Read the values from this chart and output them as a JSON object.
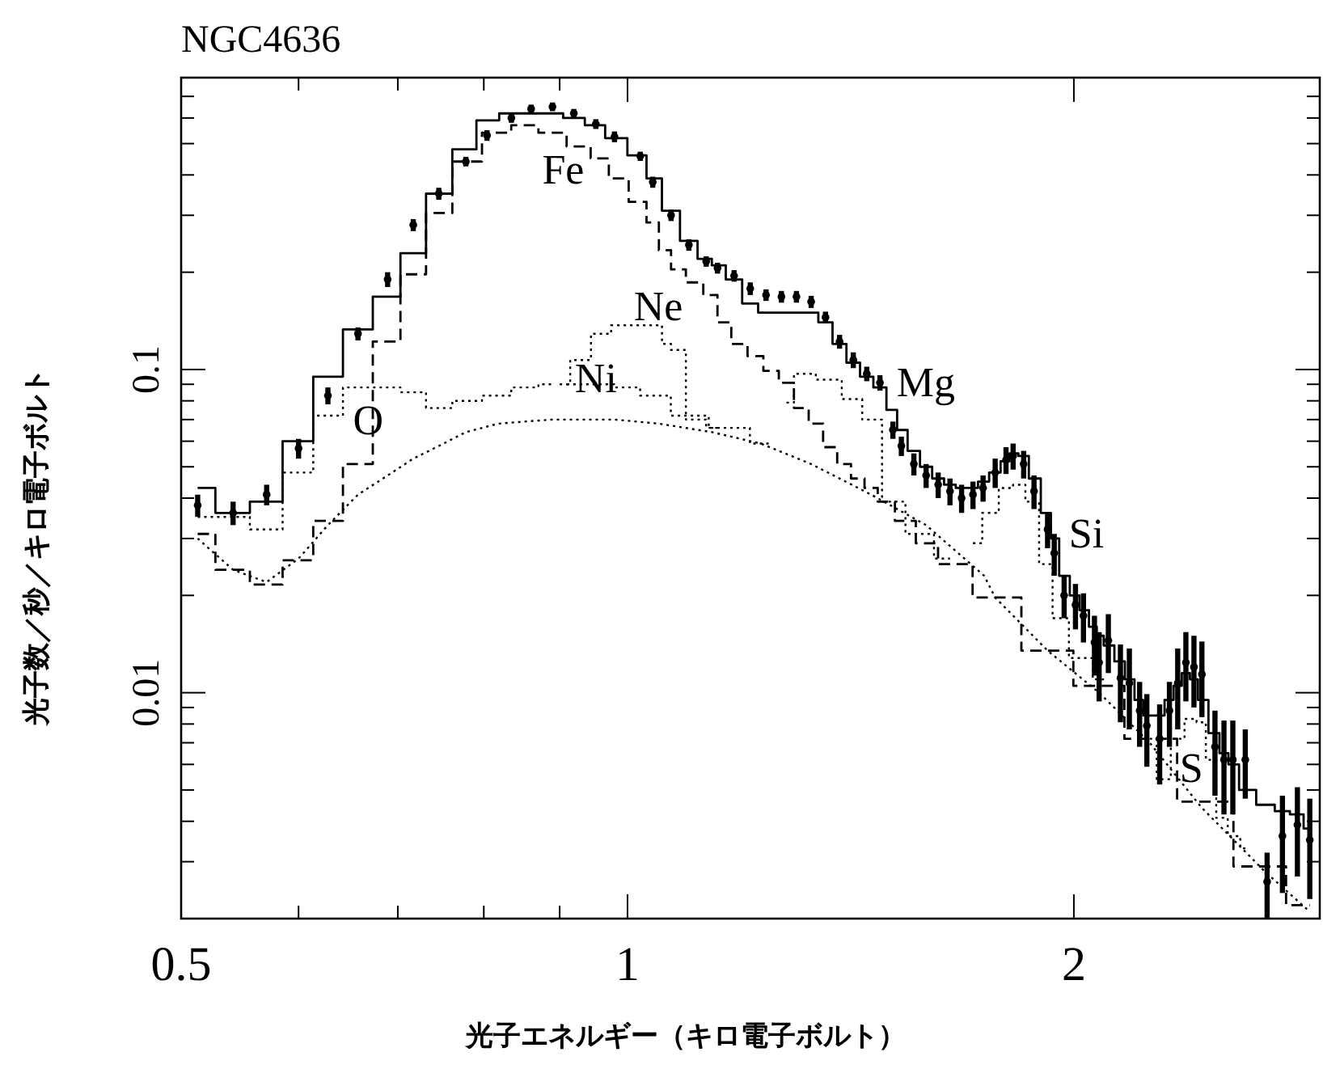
{
  "chart_data": {
    "type": "step",
    "title": "NGC4636",
    "xlabel": "光子エネルギー（キロ電子ボルト）",
    "ylabel": "光子数／秒／キロ電子ボルト",
    "log": "xy",
    "xlim": [
      0.5,
      2.93
    ],
    "ylim": [
      0.002,
      0.8
    ],
    "xticks": [
      0.5,
      {
        "value": 0.6,
        "label": null
      },
      {
        "value": 0.7,
        "label": null
      },
      {
        "value": 0.8,
        "label": null
      },
      {
        "value": 0.9,
        "label": null
      },
      1,
      2
    ],
    "yticks": [
      {
        "value": 0.002,
        "label": null
      },
      {
        "value": 0.003,
        "label": null
      },
      {
        "value": 0.004,
        "label": null
      },
      {
        "value": 0.005,
        "label": null
      },
      {
        "value": 0.006,
        "label": null
      },
      {
        "value": 0.007,
        "label": null
      },
      {
        "value": 0.008,
        "label": null
      },
      {
        "value": 0.009,
        "label": null
      },
      0.01,
      {
        "value": 0.02,
        "label": null
      },
      {
        "value": 0.03,
        "label": null
      },
      {
        "value": 0.04,
        "label": null
      },
      {
        "value": 0.05,
        "label": null
      },
      {
        "value": 0.06,
        "label": null
      },
      {
        "value": 0.07,
        "label": null
      },
      {
        "value": 0.08,
        "label": null
      },
      {
        "value": 0.09,
        "label": null
      },
      0.1,
      {
        "value": 0.2,
        "label": null
      },
      {
        "value": 0.3,
        "label": null
      },
      {
        "value": 0.4,
        "label": null
      },
      {
        "value": 0.5,
        "label": null
      },
      {
        "value": 0.6,
        "label": null
      },
      {
        "value": 0.7,
        "label": null
      }
    ],
    "x": [
      0.513,
      0.542,
      0.571,
      0.6,
      0.628,
      0.658,
      0.689,
      0.717,
      0.746,
      0.778,
      0.804,
      0.835,
      0.861,
      0.89,
      0.92,
      0.952,
      0.98,
      1.02,
      1.04,
      1.07,
      1.1,
      1.13,
      1.15,
      1.18,
      1.21,
      1.24,
      1.27,
      1.3,
      1.33,
      1.36,
      1.39,
      1.42,
      1.45,
      1.48,
      1.51,
      1.53,
      1.56,
      1.59,
      1.62,
      1.65,
      1.68,
      1.71,
      1.737,
      1.77,
      1.8,
      1.82,
      1.85,
      1.88,
      1.92,
      1.94,
      1.97,
      2.005,
      2.03,
      2.065,
      2.08,
      2.11,
      2.15,
      2.18,
      2.215,
      2.24,
      2.285,
      2.32,
      2.35,
      2.38,
      2.41,
      2.44,
      2.49,
      2.525,
      2.56,
      2.61,
      2.7,
      2.765,
      2.83,
      2.885
    ],
    "series": [
      {
        "type": "scatter",
        "color": "#000000",
        "values": [
          0.038,
          0.036,
          0.041,
          0.057,
          0.083,
          0.129,
          0.19,
          0.28,
          0.35,
          0.44,
          0.53,
          0.6,
          0.64,
          0.65,
          0.62,
          0.575,
          0.525,
          0.457,
          0.38,
          0.3,
          0.243,
          0.216,
          0.206,
          0.195,
          0.178,
          0.17,
          0.168,
          0.168,
          0.162,
          0.145,
          0.122,
          0.107,
          0.097,
          0.091,
          0.065,
          0.058,
          0.051,
          0.047,
          0.044,
          0.042,
          0.04,
          0.041,
          0.043,
          0.048,
          0.0525,
          0.054,
          0.051,
          0.042,
          0.032,
          0.027,
          0.02,
          0.0187,
          0.0173,
          0.0143,
          0.0124,
          0.0145,
          0.0111,
          0.0107,
          0.0088,
          0.0079,
          0.0072,
          0.0088,
          0.0107,
          0.0124,
          0.012,
          0.0114,
          0.0068,
          0.0062,
          0.0062,
          0.0062,
          0.0026,
          0.0036,
          0.0039,
          0.0035
        ],
        "errors": [
          0.003,
          0.003,
          0.003,
          0.004,
          0.005,
          0.006,
          0.01,
          0.012,
          0.015,
          0.015,
          0.02,
          0.02,
          0.02,
          0.02,
          0.02,
          0.02,
          0.02,
          0.015,
          0.015,
          0.012,
          0.01,
          0.008,
          0.008,
          0.008,
          0.008,
          0.007,
          0.007,
          0.007,
          0.007,
          0.006,
          0.006,
          0.006,
          0.005,
          0.005,
          0.004,
          0.004,
          0.004,
          0.004,
          0.004,
          0.004,
          0.004,
          0.004,
          0.004,
          0.005,
          0.005,
          0.005,
          0.005,
          0.005,
          0.004,
          0.004,
          0.003,
          0.003,
          0.003,
          0.003,
          0.003,
          0.003,
          0.003,
          0.003,
          0.002,
          0.002,
          0.002,
          0.002,
          0.003,
          0.003,
          0.003,
          0.003,
          0.002,
          0.002,
          0.002,
          0.0015,
          0.0006,
          0.0012,
          0.0012,
          0.0012
        ]
      },
      {
        "color": "#000000",
        "line_style": "solid",
        "values": [
          0.043,
          0.036,
          0.039,
          0.06,
          0.095,
          0.133,
          0.168,
          0.229,
          0.35,
          0.48,
          0.59,
          0.62,
          0.62,
          0.62,
          0.6,
          0.57,
          0.52,
          0.46,
          0.39,
          0.31,
          0.25,
          0.22,
          0.21,
          0.19,
          0.16,
          0.15,
          0.15,
          0.15,
          0.15,
          0.14,
          0.12,
          0.105,
          0.095,
          0.088,
          0.075,
          0.065,
          0.056,
          0.05,
          0.046,
          0.044,
          0.043,
          0.043,
          0.045,
          0.048,
          0.052,
          0.055,
          0.054,
          0.046,
          0.036,
          0.03,
          0.023,
          0.02,
          0.018,
          0.016,
          0.015,
          0.014,
          0.0125,
          0.011,
          0.0095,
          0.0085,
          0.0085,
          0.0095,
          0.0105,
          0.0115,
          0.011,
          0.0095,
          0.0075,
          0.0065,
          0.006,
          0.005,
          0.0045,
          0.0043,
          0.0042,
          0.0038
        ]
      },
      {
        "name": "Fe",
        "color": "#000000",
        "line_style": "dashed",
        "x": [
          0.513,
          0.542,
          0.571,
          0.6,
          0.628,
          0.658,
          0.689,
          0.717,
          0.746,
          0.778,
          0.818,
          0.852,
          0.89,
          0.93,
          0.959,
          0.984,
          1.02,
          1.04,
          1.06,
          1.08,
          1.11,
          1.14,
          1.16,
          1.19,
          1.22,
          1.25,
          1.28,
          1.31,
          1.34,
          1.37,
          1.4,
          1.43,
          1.46,
          1.49,
          1.54,
          1.59,
          1.65,
          1.77,
          1.92,
          2.08,
          2.25,
          2.45,
          2.68,
          2.885
        ],
        "values": [
          0.031,
          0.024,
          0.0216,
          0.0257,
          0.034,
          0.051,
          0.122,
          0.197,
          0.305,
          0.44,
          0.54,
          0.57,
          0.54,
          0.49,
          0.45,
          0.39,
          0.33,
          0.285,
          0.234,
          0.204,
          0.186,
          0.17,
          0.14,
          0.12,
          0.11,
          0.099,
          0.091,
          0.076,
          0.068,
          0.0575,
          0.051,
          0.046,
          0.043,
          0.039,
          0.034,
          0.029,
          0.025,
          0.0197,
          0.0135,
          0.0105,
          0.0072,
          0.0046,
          0.0029,
          0.0022
        ]
      },
      {
        "type": "line",
        "color": "#000000",
        "line_style": "dotted",
        "x": [
          0.513,
          0.542,
          0.571,
          0.6,
          0.628,
          0.658,
          0.689,
          0.717,
          0.746,
          0.778,
          0.818,
          0.852,
          0.89,
          0.93,
          0.98,
          1.05,
          1.14,
          1.23,
          1.33,
          1.46,
          1.59,
          1.74,
          1.77,
          1.92,
          2.08,
          2.25,
          2.44,
          2.69,
          2.885
        ],
        "values": [
          0.03,
          0.024,
          0.022,
          0.026,
          0.033,
          0.041,
          0.047,
          0.053,
          0.058,
          0.064,
          0.068,
          0.069,
          0.07,
          0.07,
          0.07,
          0.068,
          0.064,
          0.059,
          0.051,
          0.041,
          0.033,
          0.023,
          0.0197,
          0.0135,
          0.01,
          0.007,
          0.0044,
          0.0028,
          0.0021
        ]
      },
      {
        "name": "O",
        "color": "#000000",
        "line_style": "dotted",
        "x": [
          0.513,
          0.542,
          0.571,
          0.6,
          0.628,
          0.658,
          0.689,
          0.717,
          0.746,
          0.778,
          0.818,
          0.852,
          0.89
        ],
        "values": [
          0.035,
          0.035,
          0.032,
          0.048,
          0.072,
          0.088,
          0.088,
          0.085,
          0.076,
          0.08,
          0.083,
          0.088,
          0.09
        ]
      },
      {
        "name": "Ni",
        "color": "#000000",
        "line_style": "dotted",
        "x": [
          0.91,
          0.96,
          1.0,
          1.04,
          1.1,
          1.17,
          1.25
        ],
        "values": [
          0.09,
          0.09,
          0.088,
          0.083,
          0.072,
          0.066,
          0.059
        ]
      },
      {
        "name": "Ne",
        "color": "#000000",
        "line_style": "dotted",
        "x": [
          0.9,
          0.93,
          0.96,
          0.99,
          1.05,
          1.06,
          1.08,
          1.11,
          1.15
        ],
        "values": [
          0.09,
          0.107,
          0.129,
          0.137,
          0.137,
          0.12,
          0.115,
          0.07,
          0.066
        ]
      },
      {
        "name": "Mg",
        "color": "#000000",
        "line_style": "dotted",
        "x": [
          1.28,
          1.31,
          1.37,
          1.42,
          1.46,
          1.51,
          1.57,
          1.65
        ],
        "values": [
          0.079,
          0.097,
          0.093,
          0.081,
          0.07,
          0.039,
          0.031,
          0.026
        ]
      },
      {
        "name": "Si",
        "color": "#000000",
        "line_style": "dotted",
        "x": [
          1.71,
          1.76,
          1.8,
          1.84,
          1.87,
          1.92,
          1.95,
          2.02,
          2.1
        ],
        "values": [
          0.029,
          0.036,
          0.043,
          0.044,
          0.039,
          0.025,
          0.017,
          0.0128,
          0.011
        ]
      },
      {
        "name": "S",
        "color": "#000000",
        "line_style": "dotted",
        "x": [
          2.25,
          2.3,
          2.35,
          2.4,
          2.44,
          2.47,
          2.52,
          2.56,
          2.62
        ],
        "values": [
          0.0072,
          0.0054,
          0.0072,
          0.0083,
          0.0081,
          0.0062,
          0.0041,
          0.0036,
          0.0033
        ]
      }
    ]
  }
}
